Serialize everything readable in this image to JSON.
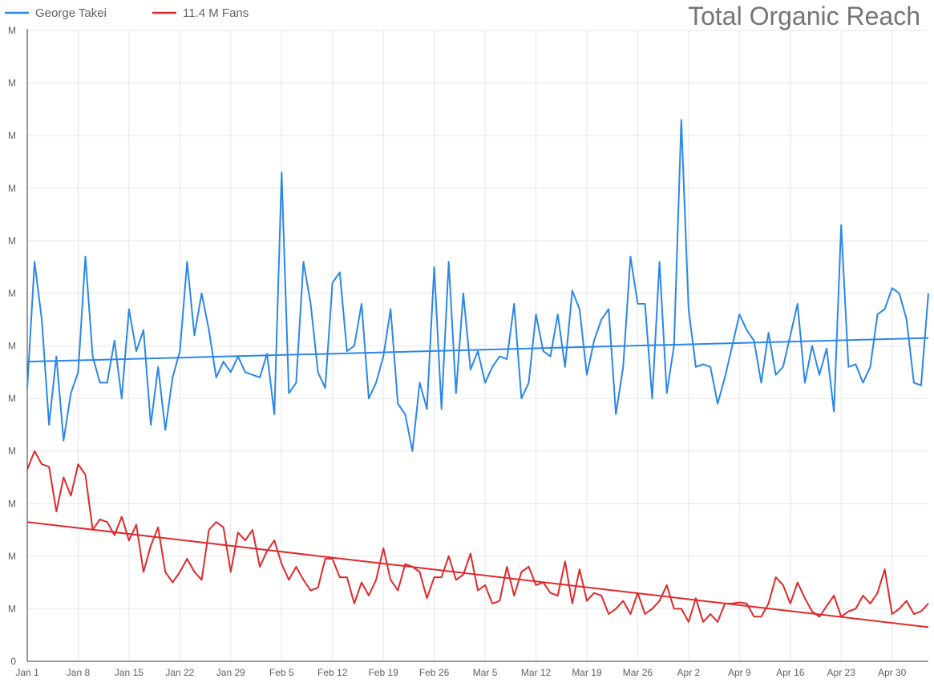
{
  "chart_data": {
    "type": "line",
    "title": "Total Organic Reach",
    "legend_position": "top-left",
    "grid": true,
    "xlabel": "",
    "ylabel": "",
    "x_ticks": [
      "Jan 1",
      "Jan 8",
      "Jan 15",
      "Jan 22",
      "Jan 29",
      "Feb 5",
      "Feb 12",
      "Feb 19",
      "Feb 26",
      "Mar 5",
      "Mar 12",
      "Mar 19",
      "Mar 26",
      "Apr 2",
      "Apr 9",
      "Apr 16",
      "Apr 23",
      "Apr 30"
    ],
    "y_ticks": [
      "0",
      "M",
      "M",
      "M",
      "M",
      "M",
      "M",
      "M",
      "M",
      "M",
      "M",
      "M",
      "M"
    ],
    "ylim": [
      0,
      12
    ],
    "x_range": [
      0,
      124
    ],
    "colors": {
      "george_takei": "#2a87e8",
      "fans_11_4m": "#e0292b"
    },
    "series": [
      {
        "name": "George Takei",
        "color": "#2a87e8",
        "values": [
          5.2,
          7.6,
          6.5,
          4.5,
          5.8,
          4.2,
          5.1,
          5.5,
          7.7,
          5.8,
          5.3,
          5.3,
          6.1,
          5.0,
          6.7,
          5.9,
          6.3,
          4.5,
          5.6,
          4.4,
          5.4,
          5.9,
          7.6,
          6.2,
          7.0,
          6.3,
          5.4,
          5.7,
          5.5,
          5.8,
          5.5,
          5.45,
          5.4,
          5.85,
          4.7,
          9.3,
          5.1,
          5.3,
          7.6,
          6.8,
          5.5,
          5.2,
          7.2,
          7.4,
          5.9,
          6.0,
          6.8,
          5.0,
          5.3,
          5.8,
          6.7,
          4.9,
          4.7,
          4.0,
          5.3,
          4.8,
          7.5,
          4.8,
          7.6,
          5.1,
          7.0,
          5.55,
          5.9,
          5.3,
          5.6,
          5.8,
          5.75,
          6.8,
          5.0,
          5.3,
          6.6,
          5.9,
          5.8,
          6.6,
          5.6,
          7.05,
          6.7,
          5.45,
          6.1,
          6.5,
          6.7,
          4.7,
          5.6,
          7.7,
          6.8,
          6.8,
          5.0,
          7.6,
          5.1,
          6.0,
          10.3,
          6.7,
          5.6,
          5.65,
          5.6,
          4.9,
          5.4,
          6.0,
          6.6,
          6.3,
          6.1,
          5.3,
          6.25,
          5.45,
          5.6,
          6.2,
          6.8,
          5.3,
          6.0,
          5.45,
          5.95,
          4.75,
          8.3,
          5.6,
          5.65,
          5.3,
          5.6,
          6.6,
          6.7,
          7.1,
          7.0,
          6.5,
          5.3,
          5.25,
          7.0
        ]
      },
      {
        "name": "11.4 M Fans",
        "color": "#e0292b",
        "values": [
          3.65,
          4.0,
          3.75,
          3.7,
          2.85,
          3.5,
          3.15,
          3.75,
          3.55,
          2.5,
          2.7,
          2.65,
          2.4,
          2.75,
          2.3,
          2.6,
          1.7,
          2.2,
          2.55,
          1.7,
          1.5,
          1.7,
          1.95,
          1.7,
          1.55,
          2.5,
          2.65,
          2.55,
          1.7,
          2.45,
          2.3,
          2.5,
          1.8,
          2.1,
          2.3,
          1.85,
          1.55,
          1.8,
          1.55,
          1.35,
          1.4,
          1.95,
          1.95,
          1.6,
          1.6,
          1.1,
          1.5,
          1.25,
          1.55,
          2.15,
          1.55,
          1.35,
          1.85,
          1.8,
          1.7,
          1.2,
          1.6,
          1.6,
          2.0,
          1.55,
          1.65,
          2.05,
          1.35,
          1.45,
          1.1,
          1.15,
          1.8,
          1.25,
          1.7,
          1.8,
          1.45,
          1.5,
          1.3,
          1.25,
          1.9,
          1.1,
          1.75,
          1.15,
          1.3,
          1.25,
          0.9,
          1.0,
          1.15,
          0.9,
          1.3,
          0.9,
          1.0,
          1.15,
          1.45,
          1.0,
          1.0,
          0.75,
          1.2,
          0.75,
          0.9,
          0.75,
          1.1,
          1.1,
          1.12,
          1.1,
          0.85,
          0.85,
          1.1,
          1.6,
          1.45,
          1.1,
          1.5,
          1.2,
          0.95,
          0.85,
          1.05,
          1.25,
          0.85,
          0.95,
          1.0,
          1.25,
          1.1,
          1.3,
          1.75,
          0.9,
          1.0,
          1.15,
          0.9,
          0.95,
          1.1
        ]
      }
    ],
    "trendlines": [
      {
        "series": "George Takei",
        "start": 5.7,
        "end": 6.15
      },
      {
        "series": "11.4 M Fans",
        "start": 2.65,
        "end": 0.65
      }
    ]
  }
}
